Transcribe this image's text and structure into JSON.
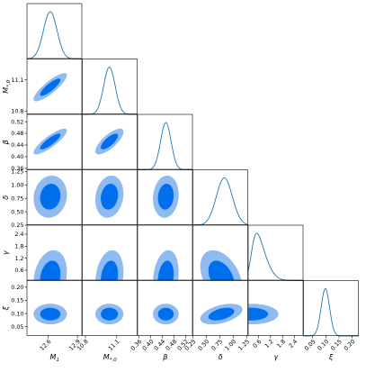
{
  "colors": {
    "line": "#1f77b4",
    "inner": "#006FED",
    "outer": "#8FBAF2",
    "axis": "#000000"
  },
  "chart_data": {
    "type": "corner",
    "parameters": [
      {
        "key": "M1",
        "label": "M",
        "sub": "1",
        "ticks": [
          12.6,
          12.9
        ],
        "tick_labels": [
          "12.6",
          "12.9"
        ],
        "range": [
          12.38,
          12.95
        ]
      },
      {
        "key": "Mstar0",
        "label": "M",
        "sub": "*,0",
        "ticks": [
          10.8,
          11.1
        ],
        "tick_labels": [
          "10.8",
          "11.1"
        ],
        "range": [
          10.77,
          11.3
        ]
      },
      {
        "key": "beta",
        "label": "β",
        "sub": "",
        "ticks": [
          0.36,
          0.4,
          0.44,
          0.48,
          0.52
        ],
        "tick_labels": [
          "0.36",
          "0.40",
          "0.44",
          "0.48",
          "0.52"
        ],
        "range": [
          0.355,
          0.545
        ]
      },
      {
        "key": "delta",
        "label": "δ",
        "sub": "",
        "ticks": [
          0.25,
          0.5,
          0.75,
          1.0,
          1.25
        ],
        "tick_labels": [
          "0.25",
          "0.50",
          "0.75",
          "1.00",
          "1.25"
        ],
        "range": [
          0.25,
          1.28
        ]
      },
      {
        "key": "gamma",
        "label": "γ",
        "sub": "",
        "ticks": [
          0.6,
          1.2,
          1.8,
          2.4
        ],
        "tick_labels": [
          "0.6",
          "1.2",
          "1.8",
          "2.4"
        ],
        "range": [
          0.08,
          2.85
        ]
      },
      {
        "key": "xi",
        "label": "ξ",
        "sub": "",
        "ticks": [
          0.05,
          0.1,
          0.15,
          0.2
        ],
        "tick_labels": [
          "0.05",
          "0.10",
          "0.15",
          "0.20"
        ],
        "range": [
          0.015,
          0.225
        ]
      }
    ],
    "marginals": [
      {
        "mean": 12.62,
        "sd": 0.07
      },
      {
        "mean": 11.03,
        "sd": 0.055
      },
      {
        "mean": 0.452,
        "sd": 0.018
      },
      {
        "mean": 0.78,
        "sd": 0.16,
        "skew": 0.5
      },
      {
        "mean": 0.25,
        "sd": 0.55,
        "skew": 3.0
      },
      {
        "mean": 0.098,
        "sd": 0.016
      }
    ],
    "correlations": {
      "1-0": 0.85,
      "2-0": 0.85,
      "2-1": 0.75,
      "3-0": 0.1,
      "3-1": 0.15,
      "3-2": 0.1,
      "4-0": 0.2,
      "4-1": 0.2,
      "4-2": 0.2,
      "4-3": -0.4,
      "5-0": 0.0,
      "5-1": 0.0,
      "5-2": 0.0,
      "5-3": 0.45,
      "5-4": 0.0
    },
    "contour_levels": [
      "68%",
      "95%"
    ]
  }
}
